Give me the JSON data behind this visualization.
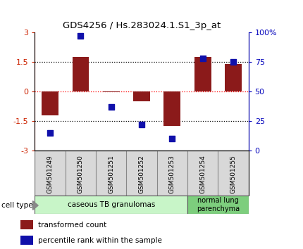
{
  "title": "GDS4256 / Hs.283024.1.S1_3p_at",
  "samples": [
    "GSM501249",
    "GSM501250",
    "GSM501251",
    "GSM501252",
    "GSM501253",
    "GSM501254",
    "GSM501255"
  ],
  "transformed_count": [
    -1.2,
    1.75,
    -0.05,
    -0.5,
    -1.75,
    1.75,
    1.4
  ],
  "percentile_rank": [
    15,
    97,
    37,
    22,
    10,
    78,
    75
  ],
  "ylim_left": [
    -3,
    3
  ],
  "ylim_right": [
    0,
    100
  ],
  "yticks_left": [
    -3,
    -1.5,
    0,
    1.5,
    3
  ],
  "yticks_right": [
    0,
    25,
    50,
    75,
    100
  ],
  "ytick_labels_right": [
    "0",
    "25",
    "50",
    "75",
    "100%"
  ],
  "hlines_dotted": [
    -1.5,
    1.5
  ],
  "bar_color": "#8B1A1A",
  "dot_color": "#1010AA",
  "dot_size": 28,
  "dot_marker": "s",
  "bar_width": 0.55,
  "group1_n": 5,
  "group2_n": 2,
  "group1_label": "caseous TB granulomas",
  "group2_label": "normal lung\nparenchyma",
  "group1_color": "#c8f5c8",
  "group2_color": "#7dce7d",
  "cell_type_label": "cell type",
  "legend_bar_label": "transformed count",
  "legend_dot_label": "percentile rank within the sample",
  "tick_color_left": "#CC2200",
  "tick_color_right": "#0000BB",
  "label_box_color": "#d8d8d8",
  "label_box_edge": "#888888",
  "background_color": "#ffffff"
}
